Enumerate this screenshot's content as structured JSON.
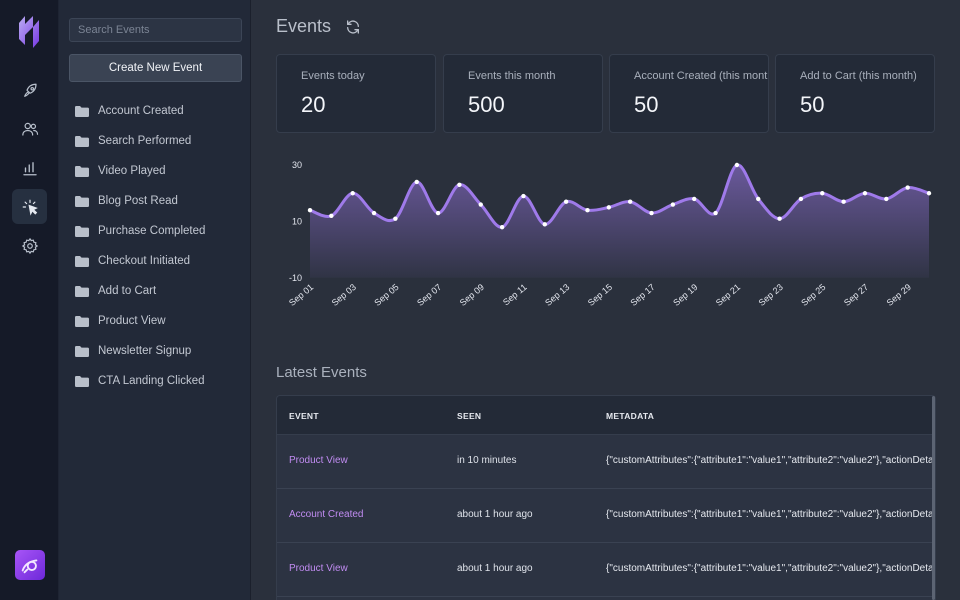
{
  "nav": {
    "logo": "logo",
    "items": [
      {
        "icon": "rocket-icon",
        "active": false
      },
      {
        "icon": "users-icon",
        "active": false
      },
      {
        "icon": "bar-chart-icon",
        "active": false
      },
      {
        "icon": "cursor-click-icon",
        "active": true
      },
      {
        "icon": "gear-icon",
        "active": false
      }
    ],
    "avatar_icon": "app-avatar-icon"
  },
  "sidebar": {
    "search_placeholder": "Search Events",
    "create_label": "Create New Event",
    "events": [
      "Account Created",
      "Search Performed",
      "Video Played",
      "Blog Post Read",
      "Purchase Completed",
      "Checkout Initiated",
      "Add to Cart",
      "Product View",
      "Newsletter Signup",
      "CTA Landing Clicked"
    ]
  },
  "header": {
    "title": "Events",
    "refresh_icon": "refresh-icon"
  },
  "stats": [
    {
      "label": "Events today",
      "value": "20"
    },
    {
      "label": "Events this month",
      "value": "500"
    },
    {
      "label": "Account Created (this month)",
      "value": "50"
    },
    {
      "label": "Add to Cart (this month)",
      "value": "50"
    }
  ],
  "chart_data": {
    "type": "area",
    "title": "",
    "xlabel": "",
    "ylabel": "",
    "x": [
      "Sep 01",
      "Sep 02",
      "Sep 03",
      "Sep 04",
      "Sep 05",
      "Sep 06",
      "Sep 07",
      "Sep 08",
      "Sep 09",
      "Sep 10",
      "Sep 11",
      "Sep 12",
      "Sep 13",
      "Sep 14",
      "Sep 15",
      "Sep 16",
      "Sep 17",
      "Sep 18",
      "Sep 19",
      "Sep 20",
      "Sep 21",
      "Sep 22",
      "Sep 23",
      "Sep 24",
      "Sep 25",
      "Sep 26",
      "Sep 27",
      "Sep 28",
      "Sep 29",
      "Sep 30"
    ],
    "tick_labels": [
      "Sep 01",
      "Sep 03",
      "Sep 05",
      "Sep 07",
      "Sep 09",
      "Sep 11",
      "Sep 13",
      "Sep 15",
      "Sep 17",
      "Sep 19",
      "Sep 21",
      "Sep 23",
      "Sep 25",
      "Sep 27",
      "Sep 29"
    ],
    "y_ticks": [
      30,
      10,
      -10
    ],
    "ylim": [
      -10,
      30
    ],
    "series": [
      {
        "values": [
          14,
          12,
          20,
          13,
          11,
          24,
          13,
          23,
          16,
          8,
          19,
          9,
          17,
          14,
          15,
          17,
          13,
          16,
          18,
          13,
          30,
          18,
          11,
          18,
          20,
          17,
          20,
          18,
          22,
          20
        ],
        "color": "#9f7aea"
      }
    ],
    "grid": false,
    "legend": "none"
  },
  "latest": {
    "title": "Latest Events",
    "columns": [
      "EVENT",
      "SEEN",
      "METADATA"
    ],
    "rows": [
      {
        "event": "Product View",
        "seen": "in 10 minutes",
        "meta": "{\"customAttributes\":{\"attribute1\":\"value1\",\"attribute2\":\"value2\"},\"actionDetail"
      },
      {
        "event": "Account Created",
        "seen": "about 1 hour ago",
        "meta": "{\"customAttributes\":{\"attribute1\":\"value1\",\"attribute2\":\"value2\"},\"actionDetail"
      },
      {
        "event": "Product View",
        "seen": "about 1 hour ago",
        "meta": "{\"customAttributes\":{\"attribute1\":\"value1\",\"attribute2\":\"value2\"},\"actionDetail"
      }
    ]
  }
}
